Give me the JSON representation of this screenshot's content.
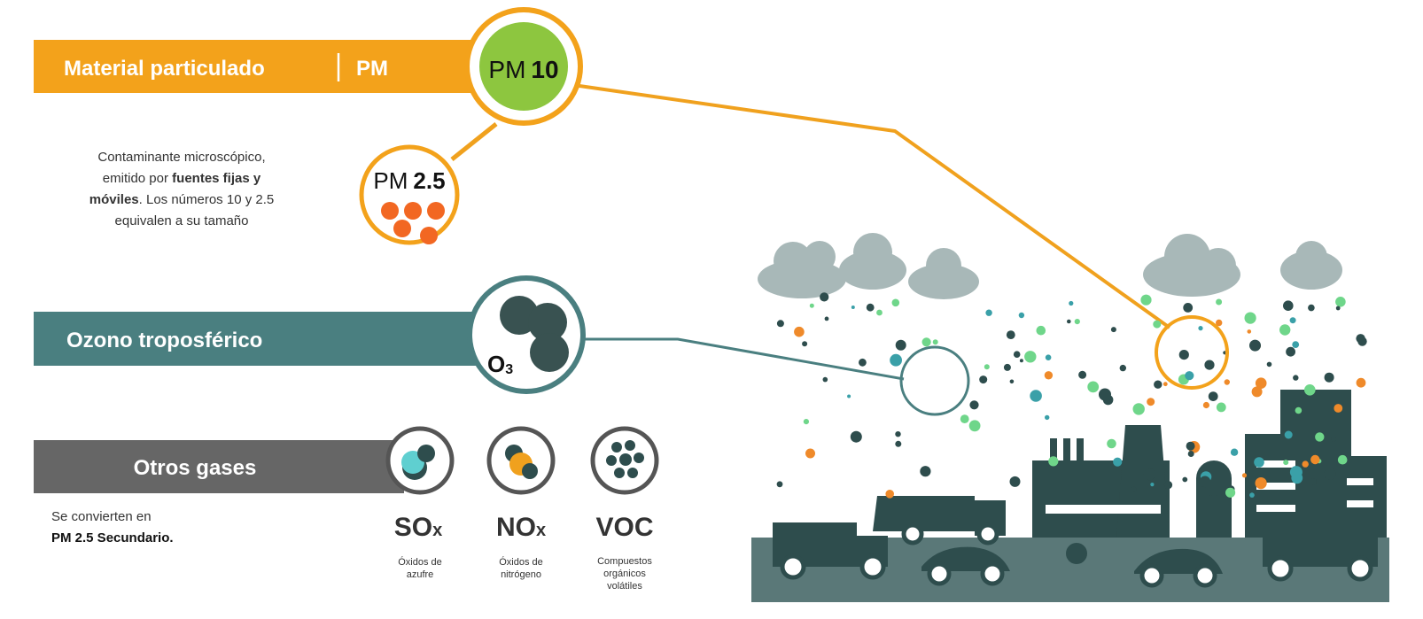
{
  "particulate": {
    "title": "Material particulado",
    "abbr": "PM",
    "pm10": {
      "label": "PM",
      "size": "10"
    },
    "pm25": {
      "label": "PM",
      "size": "2.5"
    },
    "description": [
      [
        "Contaminante microscópico,"
      ],
      [
        "emitido por ",
        "fuentes fijas y"
      ],
      [
        "móviles",
        ". Los números 10 y 2.5"
      ],
      [
        "equivalen a su tamaño"
      ]
    ]
  },
  "ozone": {
    "title": "Ozono troposférico",
    "formula": {
      "base": "O",
      "sub": "3"
    }
  },
  "other_gases": {
    "title": "Otros gases",
    "note": [
      "Se convierten en",
      "PM 2.5 Secundario."
    ],
    "gases": [
      {
        "formula": "SO",
        "suffix": "x",
        "name": [
          "Óxidos de",
          "azufre"
        ]
      },
      {
        "formula": "NO",
        "suffix": "x",
        "name": [
          "Óxidos de",
          "nitrógeno"
        ]
      },
      {
        "formula": "VOC",
        "name": [
          "Compuestos",
          "orgánicos",
          "volátiles"
        ]
      }
    ]
  }
}
